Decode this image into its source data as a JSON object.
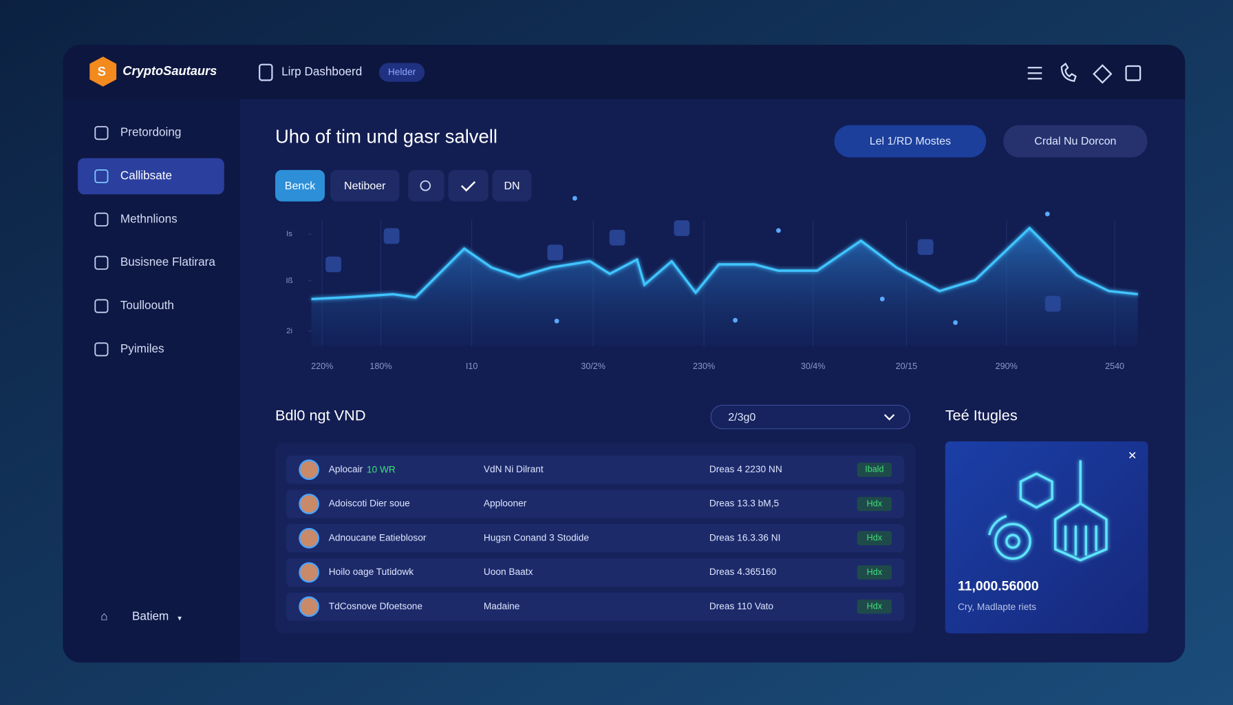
{
  "brand": "CryptoSautaurs",
  "header": {
    "title": "Lirp Dashboerd",
    "badge": "Helder"
  },
  "sidebar": {
    "items": [
      "Pretordoing",
      "Callibsate",
      "Methnlions",
      "Busisnee Flatirara",
      "Toulloouth",
      "Pyimiles"
    ],
    "active": 1,
    "footer": "Batiem"
  },
  "main": {
    "title": "Uho of tim und gasr salvell",
    "buttons": [
      "Lel 1/RD Mostes",
      "Crdal Nu Dorcon"
    ],
    "tabs": [
      "Benck",
      "Netiboer",
      "DN"
    ]
  },
  "chart_data": {
    "type": "area",
    "x": [
      0,
      4.2,
      9.9,
      12.6,
      18.5,
      21.8,
      25.1,
      29,
      33.7,
      36.1,
      39.4,
      40.3,
      43.6,
      46.5,
      49.3,
      53.6,
      56.5,
      61.2,
      66.5,
      70.8,
      76,
      80.3,
      86.9,
      92.6,
      96.5,
      100
    ],
    "series": [
      {
        "color": "#3fc4ff",
        "values": [
          37.5,
          38.8,
          41.3,
          38.8,
          77.5,
          62.5,
          55,
          62.5,
          67.5,
          57.5,
          68.8,
          48.8,
          67.5,
          42.5,
          65,
          65,
          60,
          60,
          83.8,
          62.5,
          43.8,
          52.5,
          93.8,
          56.3,
          43.8,
          41.3
        ]
      }
    ],
    "xlim": [
      0,
      100
    ],
    "ylim": [
      0,
      100
    ],
    "xticks": [
      {
        "value": 1.3,
        "label": "220%"
      },
      {
        "value": 8.4,
        "label": "180%"
      },
      {
        "value": 19.4,
        "label": "I10"
      },
      {
        "value": 34.1,
        "label": "30/2%"
      },
      {
        "value": 47.5,
        "label": "230%"
      },
      {
        "value": 60.7,
        "label": "30/4%"
      },
      {
        "value": 72,
        "label": "20/15"
      },
      {
        "value": 84.1,
        "label": "290%"
      },
      {
        "value": 97.2,
        "label": "2540"
      }
    ],
    "yticks": [
      {
        "value": 89,
        "label": "Is"
      },
      {
        "value": 52,
        "label": "Iß"
      },
      {
        "value": 12,
        "label": "2i"
      }
    ]
  },
  "table": {
    "title": "Bdl0 ngt VND",
    "filter": "2/3g0",
    "rows": [
      {
        "name": "Aplocair",
        "tag": "10 WR",
        "detail": "VdN Ni Dilrant",
        "amount": "Dreas 4 2230 NN",
        "status": "Ibald"
      },
      {
        "name": "Adoiscoti Dier soue",
        "detail": "Applooner",
        "amount": "Dreas 13.3 bM,5",
        "status": "Hdx"
      },
      {
        "name": "Adnoucane Eatieblosor",
        "detail": "Hugsn Conand 3 Stodide",
        "amount": "Dreas 16.3.36 NI",
        "status": "Hdx"
      },
      {
        "name": "Hoilo oage Tutidowk",
        "detail": "Uoon Baatx",
        "amount": "Dreas 4.365160",
        "status": "Hdx"
      },
      {
        "name": "TdCosnove Dfoetsone",
        "detail": "Madaine",
        "amount": "Dreas 110 Vato",
        "status": "Hdx"
      }
    ]
  },
  "card": {
    "title": "Teé Itugles",
    "value": "11,000.56000",
    "caption": "Cry, Madlapte riets"
  }
}
